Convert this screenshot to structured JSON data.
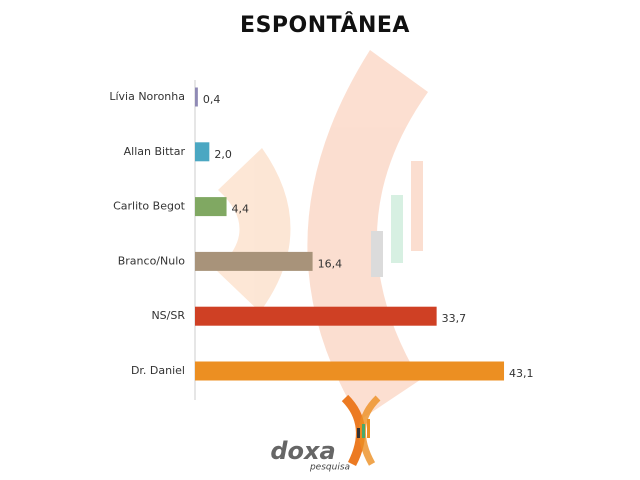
{
  "chart_data": {
    "type": "bar",
    "horizontal": true,
    "title": "ESPONTÂNEA",
    "categories": [
      "Lívia Noronha",
      "Allan Bittar",
      "Carlito Begot",
      "Branco/Nulo",
      "NS/SR",
      "Dr. Daniel"
    ],
    "values": [
      0.4,
      2.0,
      4.4,
      16.4,
      33.7,
      43.1
    ],
    "value_labels": [
      "0,4",
      "2,0",
      "4,4",
      "16,4",
      "33,7",
      "43,1"
    ],
    "colors": [
      "#8f8ab5",
      "#4ba7c2",
      "#80a862",
      "#a8937a",
      "#cf4024",
      "#ec8f22"
    ]
  },
  "logo": {
    "name": "doxa",
    "tagline": "pesquisa"
  }
}
